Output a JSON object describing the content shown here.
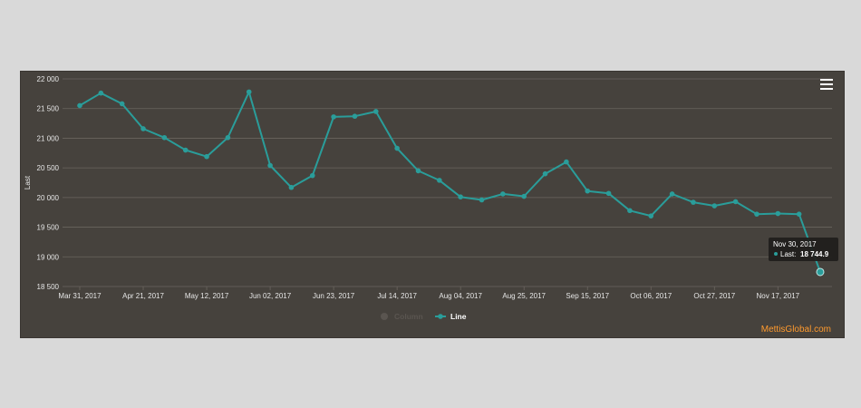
{
  "colors": {
    "background": "#46423d",
    "line": "#2a9d9a",
    "grid": "#6a655f",
    "text": "#e6e6e6",
    "credit": "#ff9a2e",
    "legend_inactive": "#5a5550"
  },
  "icons": {
    "menu": "hamburger-menu-icon"
  },
  "credit": "MettisGlobal.com",
  "chart_data": {
    "type": "line",
    "ylabel": "Last",
    "ylim": [
      18500,
      22000
    ],
    "ytick_values": [
      22000,
      21500,
      21000,
      20500,
      20000,
      19500,
      19000,
      18500
    ],
    "ytick_labels": [
      "22 000",
      "21 500",
      "21 000",
      "20 500",
      "20 000",
      "19 500",
      "19 000",
      "18 500"
    ],
    "x_axis": "weekly dates, 2017-03-31 to 2017-12-08",
    "xtick_labels": [
      "Mar 31, 2017",
      "Apr 21, 2017",
      "May 12, 2017",
      "Jun 02, 2017",
      "Jun 23, 2017",
      "Jul 14, 2017",
      "Aug 04, 2017",
      "Aug 25, 2017",
      "Sep 15, 2017",
      "Oct 06, 2017",
      "Oct 27, 2017",
      "Nov 17, 2017"
    ],
    "grid": true,
    "legend": [
      {
        "name": "Column",
        "visible": false
      },
      {
        "name": "Line",
        "visible": true
      }
    ],
    "series": [
      {
        "name": "Line",
        "x": [
          "2017-03-31",
          "2017-04-07",
          "2017-04-14",
          "2017-04-21",
          "2017-04-28",
          "2017-05-05",
          "2017-05-12",
          "2017-05-19",
          "2017-05-26",
          "2017-06-02",
          "2017-06-09",
          "2017-06-16",
          "2017-06-23",
          "2017-06-30",
          "2017-07-07",
          "2017-07-14",
          "2017-07-21",
          "2017-07-28",
          "2017-08-04",
          "2017-08-11",
          "2017-08-18",
          "2017-08-25",
          "2017-09-01",
          "2017-09-08",
          "2017-09-15",
          "2017-09-22",
          "2017-09-29",
          "2017-10-06",
          "2017-10-13",
          "2017-10-20",
          "2017-10-27",
          "2017-11-03",
          "2017-11-10",
          "2017-11-17",
          "2017-11-24",
          "2017-12-01"
        ],
        "values": [
          21550,
          21760,
          21580,
          21160,
          21010,
          20800,
          20690,
          21010,
          21780,
          20540,
          20170,
          20370,
          21360,
          21370,
          21450,
          20830,
          20450,
          20290,
          20010,
          19960,
          20060,
          20020,
          20400,
          20600,
          20110,
          20070,
          19780,
          19690,
          20060,
          19920,
          19860,
          19930,
          19720,
          19730,
          19720,
          18744.9
        ]
      }
    ],
    "tooltip": {
      "date": "Nov 30, 2017",
      "label": "Last:",
      "value": "18 744.9"
    }
  }
}
